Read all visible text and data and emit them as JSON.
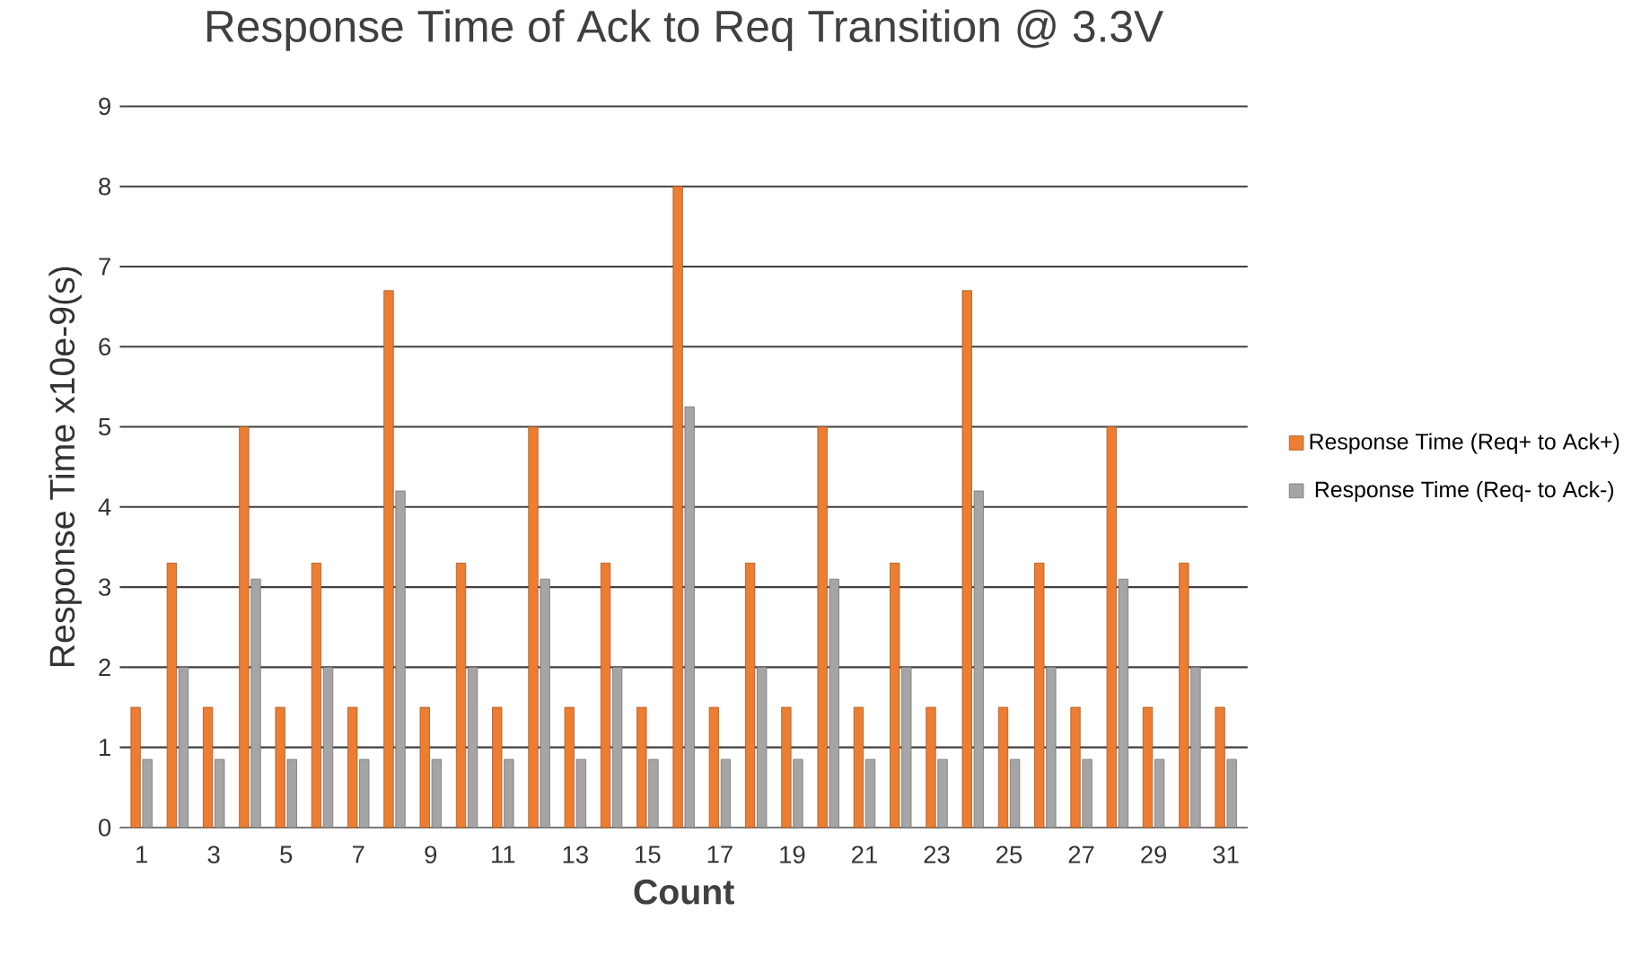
{
  "chart_data": {
    "type": "bar",
    "title": "Response Time of Ack to Req Transition @ 3.3V",
    "xlabel": "Count",
    "ylabel": "Response Time x10e-9(s)",
    "categories": [
      "1",
      null,
      "3",
      null,
      "5",
      null,
      "7",
      null,
      "9",
      null,
      "11",
      null,
      "13",
      null,
      "15",
      null,
      "17",
      null,
      "19",
      null,
      "21",
      null,
      "23",
      null,
      "25",
      null,
      "27",
      null,
      "29",
      null,
      "31"
    ],
    "series": [
      {
        "name": "Response Time (Req+ to Ack+)",
        "color": "#ed7d31",
        "values": [
          1.5,
          3.3,
          1.5,
          5,
          1.5,
          3.3,
          1.5,
          6.7,
          1.5,
          3.3,
          1.5,
          5,
          1.5,
          3.3,
          1.5,
          8,
          1.5,
          3.3,
          1.5,
          5,
          1.5,
          3.3,
          1.5,
          6.7,
          1.5,
          3.3,
          1.5,
          5,
          1.5,
          3.3,
          1.5
        ]
      },
      {
        "name": "Response Time (Req- to Ack-)",
        "color": "#a5a5a5",
        "values": [
          0.85,
          2,
          0.85,
          3.1,
          0.85,
          2,
          0.85,
          4.2,
          0.85,
          2,
          0.85,
          3.1,
          0.85,
          2,
          0.85,
          5.25,
          0.85,
          2,
          0.85,
          3.1,
          0.85,
          2,
          0.85,
          4.2,
          0.85,
          2,
          0.85,
          3.1,
          0.85,
          2,
          0.85
        ]
      }
    ],
    "ylim": [
      0,
      9
    ],
    "yticks": [
      0,
      1,
      2,
      3,
      4,
      5,
      6,
      7,
      8,
      9
    ],
    "grid": "y",
    "legend": "right"
  }
}
